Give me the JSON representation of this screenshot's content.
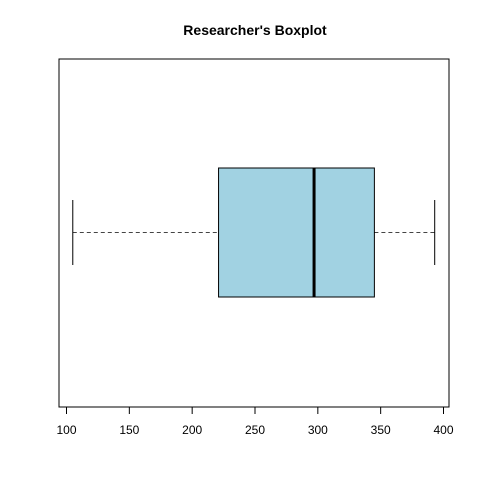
{
  "chart_data": {
    "type": "boxplot",
    "orientation": "horizontal",
    "title": "Researcher's Boxplot",
    "xlabel": "",
    "ylabel": "",
    "xlim": [
      100,
      400
    ],
    "ticks": [
      100,
      150,
      200,
      250,
      300,
      350,
      400
    ],
    "box": {
      "min": 105,
      "q1": 221,
      "median": 297,
      "q3": 345,
      "max": 393
    },
    "box_fill": "#a1d2e2",
    "whisker_style": "dashed",
    "grid": false
  }
}
